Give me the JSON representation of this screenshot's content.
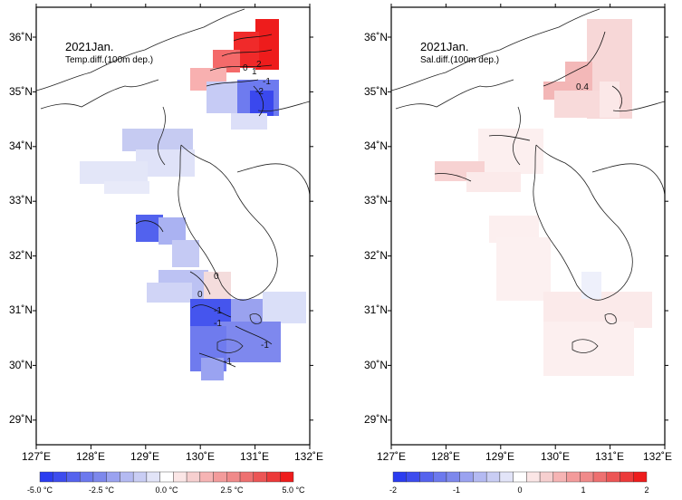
{
  "panels": [
    {
      "id": "temp",
      "title": "2021Jan.",
      "subtitle": "Temp.diff.(100m dep.)",
      "contour_labels": [
        "2",
        "1",
        "0",
        "-1",
        "-2",
        "0",
        "0",
        "-1",
        "-1",
        "-1",
        "-1"
      ],
      "colorbar": {
        "labels": [
          "-5.0 °C",
          "-2.5 °C",
          "0.0 °C",
          "2.5 °C",
          "5.0 °C"
        ]
      }
    },
    {
      "id": "sal",
      "title": "2021Jan.",
      "subtitle": "Sal.diff.(100m dep.)",
      "contour_labels": [
        "0.4"
      ],
      "colorbar": {
        "labels": [
          "-2",
          "-1",
          "0",
          "1",
          "2"
        ]
      }
    }
  ],
  "axes": {
    "lon_labels": [
      "127˚E",
      "128˚E",
      "129˚E",
      "130˚E",
      "131˚E",
      "132˚E"
    ],
    "lat_labels": [
      "36˚N",
      "35˚N",
      "34˚N",
      "33˚N",
      "32˚N",
      "31˚N",
      "30˚N",
      "29˚N"
    ]
  },
  "colors": {
    "neg_strong": "#2b3cf0",
    "neg_mid": "#7d88ec",
    "neg_light": "#c9cdf4",
    "neutral": "#ffffff",
    "pos_light": "#f6cfcf",
    "pos_mid": "#f08a8a",
    "pos_strong": "#ee1c1c"
  }
}
